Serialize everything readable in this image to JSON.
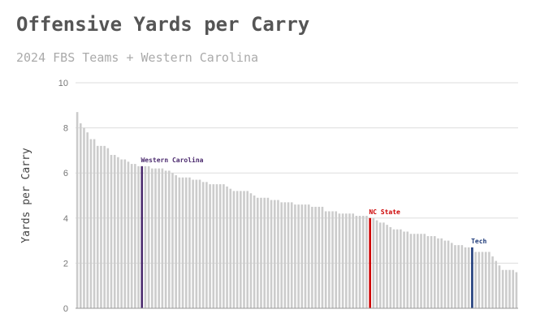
{
  "chart_data": {
    "type": "bar",
    "title": "Offensive Yards per Carry",
    "subtitle": "2024 FBS Teams + Western Carolina",
    "ylabel": "Yards per Carry",
    "xlabel": "",
    "ylim": [
      0,
      10
    ],
    "yticks": [
      0,
      2,
      4,
      6,
      8,
      10
    ],
    "grid": true,
    "base_color": "#cccccc",
    "values": [
      8.7,
      8.2,
      8.0,
      7.8,
      7.5,
      7.5,
      7.2,
      7.2,
      7.2,
      7.1,
      6.8,
      6.8,
      6.7,
      6.6,
      6.6,
      6.5,
      6.4,
      6.4,
      6.3,
      6.3,
      6.3,
      6.3,
      6.2,
      6.2,
      6.2,
      6.2,
      6.1,
      6.1,
      6.0,
      5.9,
      5.8,
      5.8,
      5.8,
      5.8,
      5.7,
      5.7,
      5.7,
      5.6,
      5.6,
      5.5,
      5.5,
      5.5,
      5.5,
      5.5,
      5.4,
      5.3,
      5.2,
      5.2,
      5.2,
      5.2,
      5.2,
      5.1,
      5.0,
      4.9,
      4.9,
      4.9,
      4.9,
      4.8,
      4.8,
      4.8,
      4.7,
      4.7,
      4.7,
      4.7,
      4.6,
      4.6,
      4.6,
      4.6,
      4.6,
      4.5,
      4.5,
      4.5,
      4.5,
      4.3,
      4.3,
      4.3,
      4.3,
      4.2,
      4.2,
      4.2,
      4.2,
      4.2,
      4.1,
      4.1,
      4.1,
      4.1,
      4.0,
      4.0,
      3.9,
      3.8,
      3.8,
      3.7,
      3.6,
      3.5,
      3.5,
      3.5,
      3.4,
      3.4,
      3.3,
      3.3,
      3.3,
      3.3,
      3.3,
      3.2,
      3.2,
      3.2,
      3.1,
      3.1,
      3.0,
      3.0,
      2.9,
      2.8,
      2.8,
      2.8,
      2.7,
      2.7,
      2.7,
      2.5,
      2.5,
      2.5,
      2.5,
      2.5,
      2.3,
      2.1,
      1.9,
      1.7,
      1.7,
      1.7,
      1.7,
      1.6
    ],
    "highlights": [
      {
        "index": 19,
        "label": "Western Carolina",
        "color": "#4b2a6e"
      },
      {
        "index": 86,
        "label": "NC State",
        "color": "#cc0000"
      },
      {
        "index": 116,
        "label": "Tech",
        "color": "#1f3b7a"
      }
    ]
  }
}
